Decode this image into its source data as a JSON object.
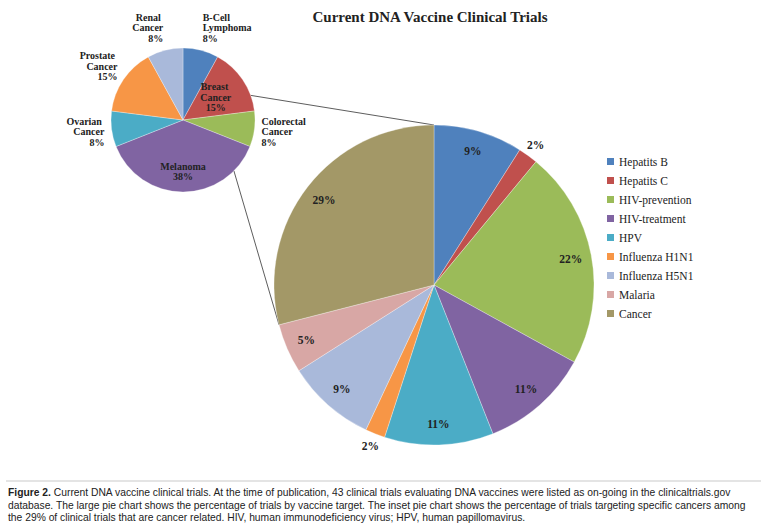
{
  "chart_data": [
    {
      "type": "pie",
      "title": "Current DNA Vaccine Clinical Trials",
      "categories": [
        "Hepatits B",
        "Hepatits C",
        "HIV-prevention",
        "HIV-treatment",
        "HPV",
        "Influenza H1N1",
        "Influenza H5N1",
        "Malaria",
        "Cancer"
      ],
      "values": [
        9,
        2,
        22,
        11,
        11,
        2,
        9,
        5,
        29
      ],
      "value_labels": [
        "9%",
        "2%",
        "22%",
        "11%",
        "11%",
        "2%",
        "9%",
        "5%",
        "29%"
      ],
      "colors": [
        "#4f81bd",
        "#c0504d",
        "#9bbb59",
        "#8064a2",
        "#4bacc6",
        "#f79646",
        "#a9b9da",
        "#d8a7a5",
        "#a39867"
      ],
      "data_labels": true,
      "legend": "right"
    },
    {
      "type": "pie",
      "categories": [
        "B-Cell Lymphoma",
        "Breast Cancer",
        "Colorectal Cancer",
        "Melanoma",
        "Ovarian Cancer",
        "Prostate Cancer",
        "Renal Cancer"
      ],
      "values": [
        8,
        15,
        8,
        38,
        8,
        15,
        8
      ],
      "value_labels": [
        "8%",
        "15%",
        "8%",
        "38%",
        "8%",
        "15%",
        "8%"
      ],
      "colors": [
        "#4f81bd",
        "#c0504d",
        "#9bbb59",
        "#8064a2",
        "#4bacc6",
        "#f79646",
        "#a9b9da"
      ],
      "data_labels": true
    }
  ],
  "caption": {
    "label": "Figure 2.",
    "text": "Current DNA vaccine clinical trials. At the time of publication, 43 clinical trials evaluating DNA vaccines were listed as on-going in the clinicaltrials.gov database. The large pie chart shows the percentage of trials by vaccine target. The inset pie chart shows the percentage of trials targeting specific cancers among the 29% of clinical trials that are cancer related. HIV, human immunodeficiency virus; HPV, human papillomavirus."
  }
}
